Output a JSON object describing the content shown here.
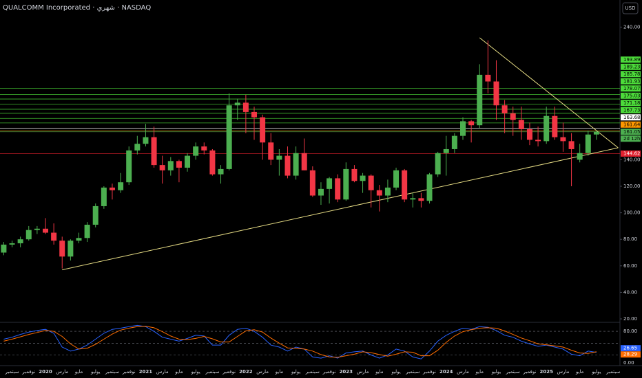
{
  "chart_data": {
    "type": "candlestick",
    "title": "QUALCOMM Incorporated · شهري · NASDAQ",
    "currency": "USD",
    "categories": [
      null,
      "سبتمبر",
      null,
      "نوفمبر",
      null,
      "2020",
      null,
      "مارس",
      null,
      "مايو",
      null,
      "يوليو",
      null,
      "سبتمبر",
      null,
      "نوفمبر",
      null,
      "2021",
      null,
      "مارس",
      null,
      "مايو",
      null,
      "يوليو",
      null,
      "سبتمبر",
      null,
      "نوفمبر",
      null,
      "2022",
      null,
      "مارس",
      null,
      "مايو",
      null,
      "يوليو",
      null,
      "سبتمبر",
      null,
      "نوفمبر",
      null,
      "2023",
      null,
      "مارس",
      null,
      "مايو",
      null,
      "يوليو",
      null,
      "سبتمبر",
      null,
      "نوفمبر",
      null,
      "2024",
      null,
      "مارس",
      null,
      "مايو",
      null,
      "يوليو",
      null,
      "سبتمبر",
      null,
      "نوفمبر",
      null,
      "2025",
      null,
      "مارس",
      null,
      "مايو",
      null,
      "يوليو",
      null,
      "سبتمبر"
    ],
    "open": [
      70,
      76,
      77,
      80,
      87,
      88,
      85,
      79,
      67,
      79,
      81,
      91,
      105,
      119,
      117,
      123,
      147,
      152,
      157,
      136,
      132,
      139,
      134,
      143,
      150,
      147,
      129,
      133,
      181,
      183,
      176,
      172,
      153,
      140,
      143,
      128,
      145,
      132,
      113,
      118,
      126,
      110,
      133,
      124,
      128,
      117,
      113,
      119,
      132,
      110,
      111,
      109,
      129,
      145,
      148,
      158,
      169,
      166,
      204,
      199,
      181,
      175,
      170,
      163,
      155,
      154,
      173,
      157,
      154,
      140,
      145,
      159,
      null,
      null
    ],
    "high": [
      78,
      79,
      82,
      90,
      90,
      96,
      92,
      82,
      80,
      85,
      93,
      107,
      120,
      122,
      130,
      150,
      158,
      167,
      165,
      143,
      142,
      140,
      145,
      153,
      153,
      148,
      136,
      190,
      186,
      189,
      180,
      174,
      160,
      148,
      150,
      150,
      156,
      135,
      123,
      127,
      129,
      138,
      136,
      130,
      129,
      121,
      125,
      134,
      133,
      115,
      115,
      130,
      146,
      158,
      160,
      172,
      170,
      212,
      230,
      215,
      185,
      180,
      180,
      168,
      165,
      180,
      180,
      168,
      160,
      152,
      162,
      162,
      null,
      null
    ],
    "low": [
      68,
      74,
      74,
      79,
      84,
      84,
      76,
      58,
      64,
      77,
      78,
      89,
      103,
      110,
      115,
      121,
      144,
      150,
      134,
      122,
      128,
      123,
      131,
      140,
      144,
      128,
      122,
      132,
      170,
      160,
      155,
      140,
      136,
      128,
      126,
      125,
      132,
      112,
      106,
      107,
      108,
      109,
      123,
      115,
      104,
      101,
      108,
      117,
      108,
      104,
      104,
      107,
      127,
      128,
      145,
      155,
      153,
      164,
      190,
      170,
      160,
      158,
      155,
      151,
      150,
      152,
      155,
      146,
      120,
      138,
      143,
      155,
      null,
      null
    ],
    "close": [
      76,
      77,
      80,
      87,
      88,
      85,
      79,
      67,
      79,
      81,
      91,
      105,
      119,
      117,
      123,
      147,
      152,
      157,
      136,
      132,
      139,
      134,
      143,
      150,
      147,
      129,
      133,
      181,
      183,
      176,
      172,
      153,
      140,
      143,
      128,
      145,
      132,
      113,
      118,
      126,
      110,
      133,
      124,
      128,
      117,
      113,
      119,
      132,
      110,
      111,
      109,
      129,
      145,
      148,
      158,
      169,
      166,
      204,
      199,
      181,
      175,
      170,
      163,
      155,
      154,
      173,
      157,
      154,
      148,
      145,
      159,
      161.05,
      null,
      null
    ],
    "up_color": "#4caf50",
    "down_color": "#f23645",
    "ylim": [
      17.93,
      260.41
    ],
    "yticks": [
      {
        "value": 240,
        "label": "240.00"
      },
      {
        "value": 140,
        "label": "140.00"
      },
      {
        "value": 120,
        "label": "120.00"
      },
      {
        "value": 100,
        "label": "100.00"
      },
      {
        "value": 80,
        "label": "80.00"
      },
      {
        "value": 60,
        "label": "60.00"
      },
      {
        "value": 40,
        "label": "40.00"
      },
      {
        "value": 20,
        "label": "20.00"
      }
    ],
    "levels": [
      {
        "value": 193.89,
        "color": "#4cdb3a"
      },
      {
        "value": 189.23,
        "color": "#4cdb3a"
      },
      {
        "value": 185.78,
        "color": "#4cdb3a"
      },
      {
        "value": 181.93,
        "color": "#4cdb3a"
      },
      {
        "value": 178.07,
        "color": "#4cdb3a"
      },
      {
        "value": 175.03,
        "color": "#4cdb3a"
      },
      {
        "value": 171.18,
        "color": "#4cdb3a"
      },
      {
        "value": 167.73,
        "color": "#4cdb3a"
      },
      {
        "value": 163.68,
        "color": "#ffffff"
      },
      {
        "value": 161.64,
        "color": "#ff9800"
      },
      {
        "value": 161.05,
        "color": "#4caf50"
      },
      {
        "value": 144.62,
        "color": "#e0202e"
      }
    ],
    "countdown": "2d 12h",
    "trend_lines": [
      {
        "color": "#e6dc84",
        "points": [
          [
            7,
            57
          ],
          [
            73.6,
            149
          ]
        ]
      },
      {
        "color": "#e6dc84",
        "points": [
          [
            57,
            232
          ],
          [
            73.6,
            149
          ]
        ]
      }
    ],
    "oscillator": {
      "ylim": [
        -7,
        101
      ],
      "yticks": [
        {
          "value": 80,
          "label": "80.00"
        },
        {
          "value": 0,
          "label": "0.00"
        }
      ],
      "bands": [
        80,
        50,
        20
      ],
      "series": [
        {
          "color": "#2962ff",
          "values": [
            60,
            65,
            72,
            78,
            82,
            85,
            75,
            40,
            30,
            35,
            45,
            60,
            75,
            85,
            88,
            92,
            95,
            92,
            80,
            65,
            60,
            55,
            62,
            70,
            68,
            45,
            45,
            70,
            85,
            88,
            80,
            65,
            45,
            40,
            30,
            40,
            35,
            15,
            12,
            18,
            12,
            25,
            28,
            30,
            20,
            12,
            20,
            35,
            30,
            15,
            10,
            30,
            55,
            70,
            80,
            88,
            85,
            92,
            90,
            82,
            70,
            65,
            55,
            48,
            42,
            45,
            40,
            35,
            22,
            18,
            30,
            26.65,
            null,
            null
          ]
        },
        {
          "color": "#ff6d00",
          "values": [
            55,
            60,
            66,
            72,
            77,
            82,
            80,
            67,
            48,
            35,
            37,
            47,
            60,
            73,
            83,
            88,
            92,
            93,
            89,
            79,
            68,
            60,
            59,
            62,
            67,
            61,
            53,
            53,
            67,
            81,
            84,
            78,
            63,
            50,
            38,
            37,
            35,
            30,
            21,
            15,
            14,
            18,
            22,
            28,
            26,
            21,
            17,
            22,
            28,
            27,
            18,
            18,
            32,
            52,
            68,
            79,
            84,
            88,
            89,
            88,
            81,
            72,
            63,
            56,
            48,
            46,
            43,
            40,
            32,
            25,
            24,
            28.29,
            null,
            null
          ]
        }
      ]
    }
  }
}
